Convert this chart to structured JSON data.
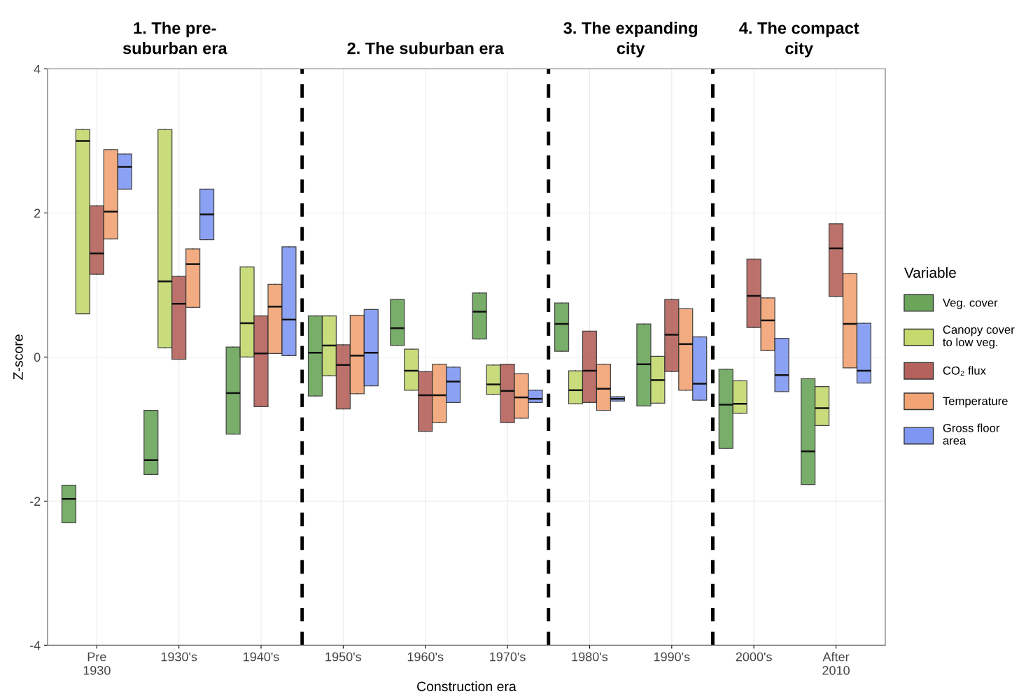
{
  "chart_data": {
    "type": "box",
    "categories": [
      "Pre\n1930",
      "1930's",
      "1940's",
      "1950's",
      "1960's",
      "1970's",
      "1980's",
      "1990's",
      "2000's",
      "After\n2010"
    ],
    "xlabel": "Construction era",
    "ylabel": "Z-score",
    "legend_title": "Variable",
    "legend": "right",
    "grid": true,
    "ylim": [
      -4,
      4
    ],
    "yticks": [
      -4,
      -2,
      0,
      2,
      4
    ],
    "annotations": [
      "1. The pre-\nsuburban era",
      "2. The suburban era",
      "3. The expanding\ncity",
      "4. The compact\ncity"
    ],
    "series": [
      {
        "name": "Veg. cover",
        "color": "#6aa55a",
        "boxes": [
          {
            "low": -2.3,
            "q1": -2.3,
            "median": -1.97,
            "q3": -1.78,
            "high": -1.78
          },
          {
            "low": -1.63,
            "q1": -1.63,
            "median": -1.43,
            "q3": -0.74,
            "high": -0.74
          },
          {
            "low": -1.07,
            "q1": -1.07,
            "median": -0.5,
            "q3": 0.14,
            "high": 0.14
          },
          {
            "low": -0.54,
            "q1": -0.54,
            "median": 0.06,
            "q3": 0.57,
            "high": 0.57
          },
          {
            "low": 0.16,
            "q1": 0.16,
            "median": 0.4,
            "q3": 0.8,
            "high": 0.8
          },
          {
            "low": 0.25,
            "q1": 0.25,
            "median": 0.63,
            "q3": 0.89,
            "high": 0.89
          },
          {
            "low": 0.08,
            "q1": 0.08,
            "median": 0.46,
            "q3": 0.75,
            "high": 0.75
          },
          {
            "low": -0.68,
            "q1": -0.68,
            "median": -0.1,
            "q3": 0.46,
            "high": 0.46
          },
          {
            "low": -1.27,
            "q1": -1.27,
            "median": -0.66,
            "q3": -0.17,
            "high": -0.17
          },
          {
            "low": -1.77,
            "q1": -1.77,
            "median": -1.31,
            "q3": -0.3,
            "high": -0.3
          }
        ]
      },
      {
        "name": "Canopy cover\nto low veg.",
        "color": "#c4d96e",
        "boxes": [
          {
            "low": 0.6,
            "q1": 0.6,
            "median": 3.0,
            "q3": 3.16,
            "high": 3.16
          },
          {
            "low": 0.13,
            "q1": 0.13,
            "median": 1.05,
            "q3": 3.16,
            "high": 3.16
          },
          {
            "low": 0.0,
            "q1": 0.0,
            "median": 0.47,
            "q3": 1.25,
            "high": 1.25
          },
          {
            "low": -0.26,
            "q1": -0.26,
            "median": 0.16,
            "q3": 0.57,
            "high": 0.57
          },
          {
            "low": -0.46,
            "q1": -0.46,
            "median": -0.19,
            "q3": 0.11,
            "high": 0.11
          },
          {
            "low": -0.52,
            "q1": -0.52,
            "median": -0.38,
            "q3": -0.11,
            "high": -0.11
          },
          {
            "low": -0.65,
            "q1": -0.65,
            "median": -0.46,
            "q3": -0.19,
            "high": -0.19
          },
          {
            "low": -0.64,
            "q1": -0.64,
            "median": -0.32,
            "q3": 0.01,
            "high": 0.01
          },
          {
            "low": -0.78,
            "q1": -0.78,
            "median": -0.65,
            "q3": -0.33,
            "high": -0.33
          },
          {
            "low": -0.95,
            "q1": -0.95,
            "median": -0.71,
            "q3": -0.41,
            "high": -0.41
          }
        ]
      },
      {
        "name": "CO₂ flux",
        "color": "#b5625c",
        "boxes": [
          {
            "low": 1.15,
            "q1": 1.15,
            "median": 1.44,
            "q3": 2.1,
            "high": 2.1
          },
          {
            "low": -0.03,
            "q1": -0.03,
            "median": 0.74,
            "q3": 1.12,
            "high": 1.12
          },
          {
            "low": -0.69,
            "q1": -0.69,
            "median": 0.05,
            "q3": 0.57,
            "high": 0.57
          },
          {
            "low": -0.72,
            "q1": -0.72,
            "median": -0.11,
            "q3": 0.17,
            "high": 0.17
          },
          {
            "low": -1.03,
            "q1": -1.03,
            "median": -0.53,
            "q3": -0.2,
            "high": -0.2
          },
          {
            "low": -0.91,
            "q1": -0.91,
            "median": -0.47,
            "q3": -0.1,
            "high": -0.1
          },
          {
            "low": -0.63,
            "q1": -0.63,
            "median": -0.19,
            "q3": 0.36,
            "high": 0.36
          },
          {
            "low": -0.2,
            "q1": -0.2,
            "median": 0.31,
            "q3": 0.8,
            "high": 0.8
          },
          {
            "low": 0.41,
            "q1": 0.41,
            "median": 0.85,
            "q3": 1.36,
            "high": 1.36
          },
          {
            "low": 0.84,
            "q1": 0.84,
            "median": 1.51,
            "q3": 1.85,
            "high": 1.85
          }
        ]
      },
      {
        "name": "Temperature",
        "color": "#f2a474",
        "boxes": [
          {
            "low": 1.64,
            "q1": 1.64,
            "median": 2.02,
            "q3": 2.88,
            "high": 2.88
          },
          {
            "low": 0.69,
            "q1": 0.69,
            "median": 1.29,
            "q3": 1.5,
            "high": 1.5
          },
          {
            "low": 0.05,
            "q1": 0.05,
            "median": 0.7,
            "q3": 1.01,
            "high": 1.01
          },
          {
            "low": -0.51,
            "q1": -0.51,
            "median": 0.02,
            "q3": 0.58,
            "high": 0.58
          },
          {
            "low": -0.91,
            "q1": -0.91,
            "median": -0.53,
            "q3": -0.1,
            "high": -0.1
          },
          {
            "low": -0.85,
            "q1": -0.85,
            "median": -0.56,
            "q3": -0.23,
            "high": -0.23
          },
          {
            "low": -0.74,
            "q1": -0.74,
            "median": -0.44,
            "q3": -0.1,
            "high": -0.1
          },
          {
            "low": -0.46,
            "q1": -0.46,
            "median": 0.18,
            "q3": 0.67,
            "high": 0.67
          },
          {
            "low": 0.09,
            "q1": 0.09,
            "median": 0.51,
            "q3": 0.82,
            "high": 0.82
          },
          {
            "low": -0.15,
            "q1": -0.15,
            "median": 0.46,
            "q3": 1.16,
            "high": 1.16
          }
        ]
      },
      {
        "name": "Gross floor\narea",
        "color": "#7f97f2",
        "boxes": [
          {
            "low": 2.33,
            "q1": 2.33,
            "median": 2.64,
            "q3": 2.82,
            "high": 2.82
          },
          {
            "low": 1.63,
            "q1": 1.63,
            "median": 1.98,
            "q3": 2.33,
            "high": 2.33
          },
          {
            "low": 0.02,
            "q1": 0.02,
            "median": 0.52,
            "q3": 1.53,
            "high": 1.53
          },
          {
            "low": -0.4,
            "q1": -0.4,
            "median": 0.06,
            "q3": 0.66,
            "high": 0.66
          },
          {
            "low": -0.63,
            "q1": -0.63,
            "median": -0.34,
            "q3": -0.14,
            "high": -0.14
          },
          {
            "low": -0.63,
            "q1": -0.63,
            "median": -0.58,
            "q3": -0.46,
            "high": -0.46
          },
          {
            "low": -0.61,
            "q1": -0.61,
            "median": -0.58,
            "q3": -0.55,
            "high": -0.55
          },
          {
            "low": -0.6,
            "q1": -0.6,
            "median": -0.37,
            "q3": 0.28,
            "high": 0.28
          },
          {
            "low": -0.48,
            "q1": -0.48,
            "median": -0.25,
            "q3": 0.26,
            "high": 0.26
          },
          {
            "low": -0.36,
            "q1": -0.36,
            "median": -0.19,
            "q3": 0.47,
            "high": 0.47
          }
        ]
      }
    ]
  }
}
